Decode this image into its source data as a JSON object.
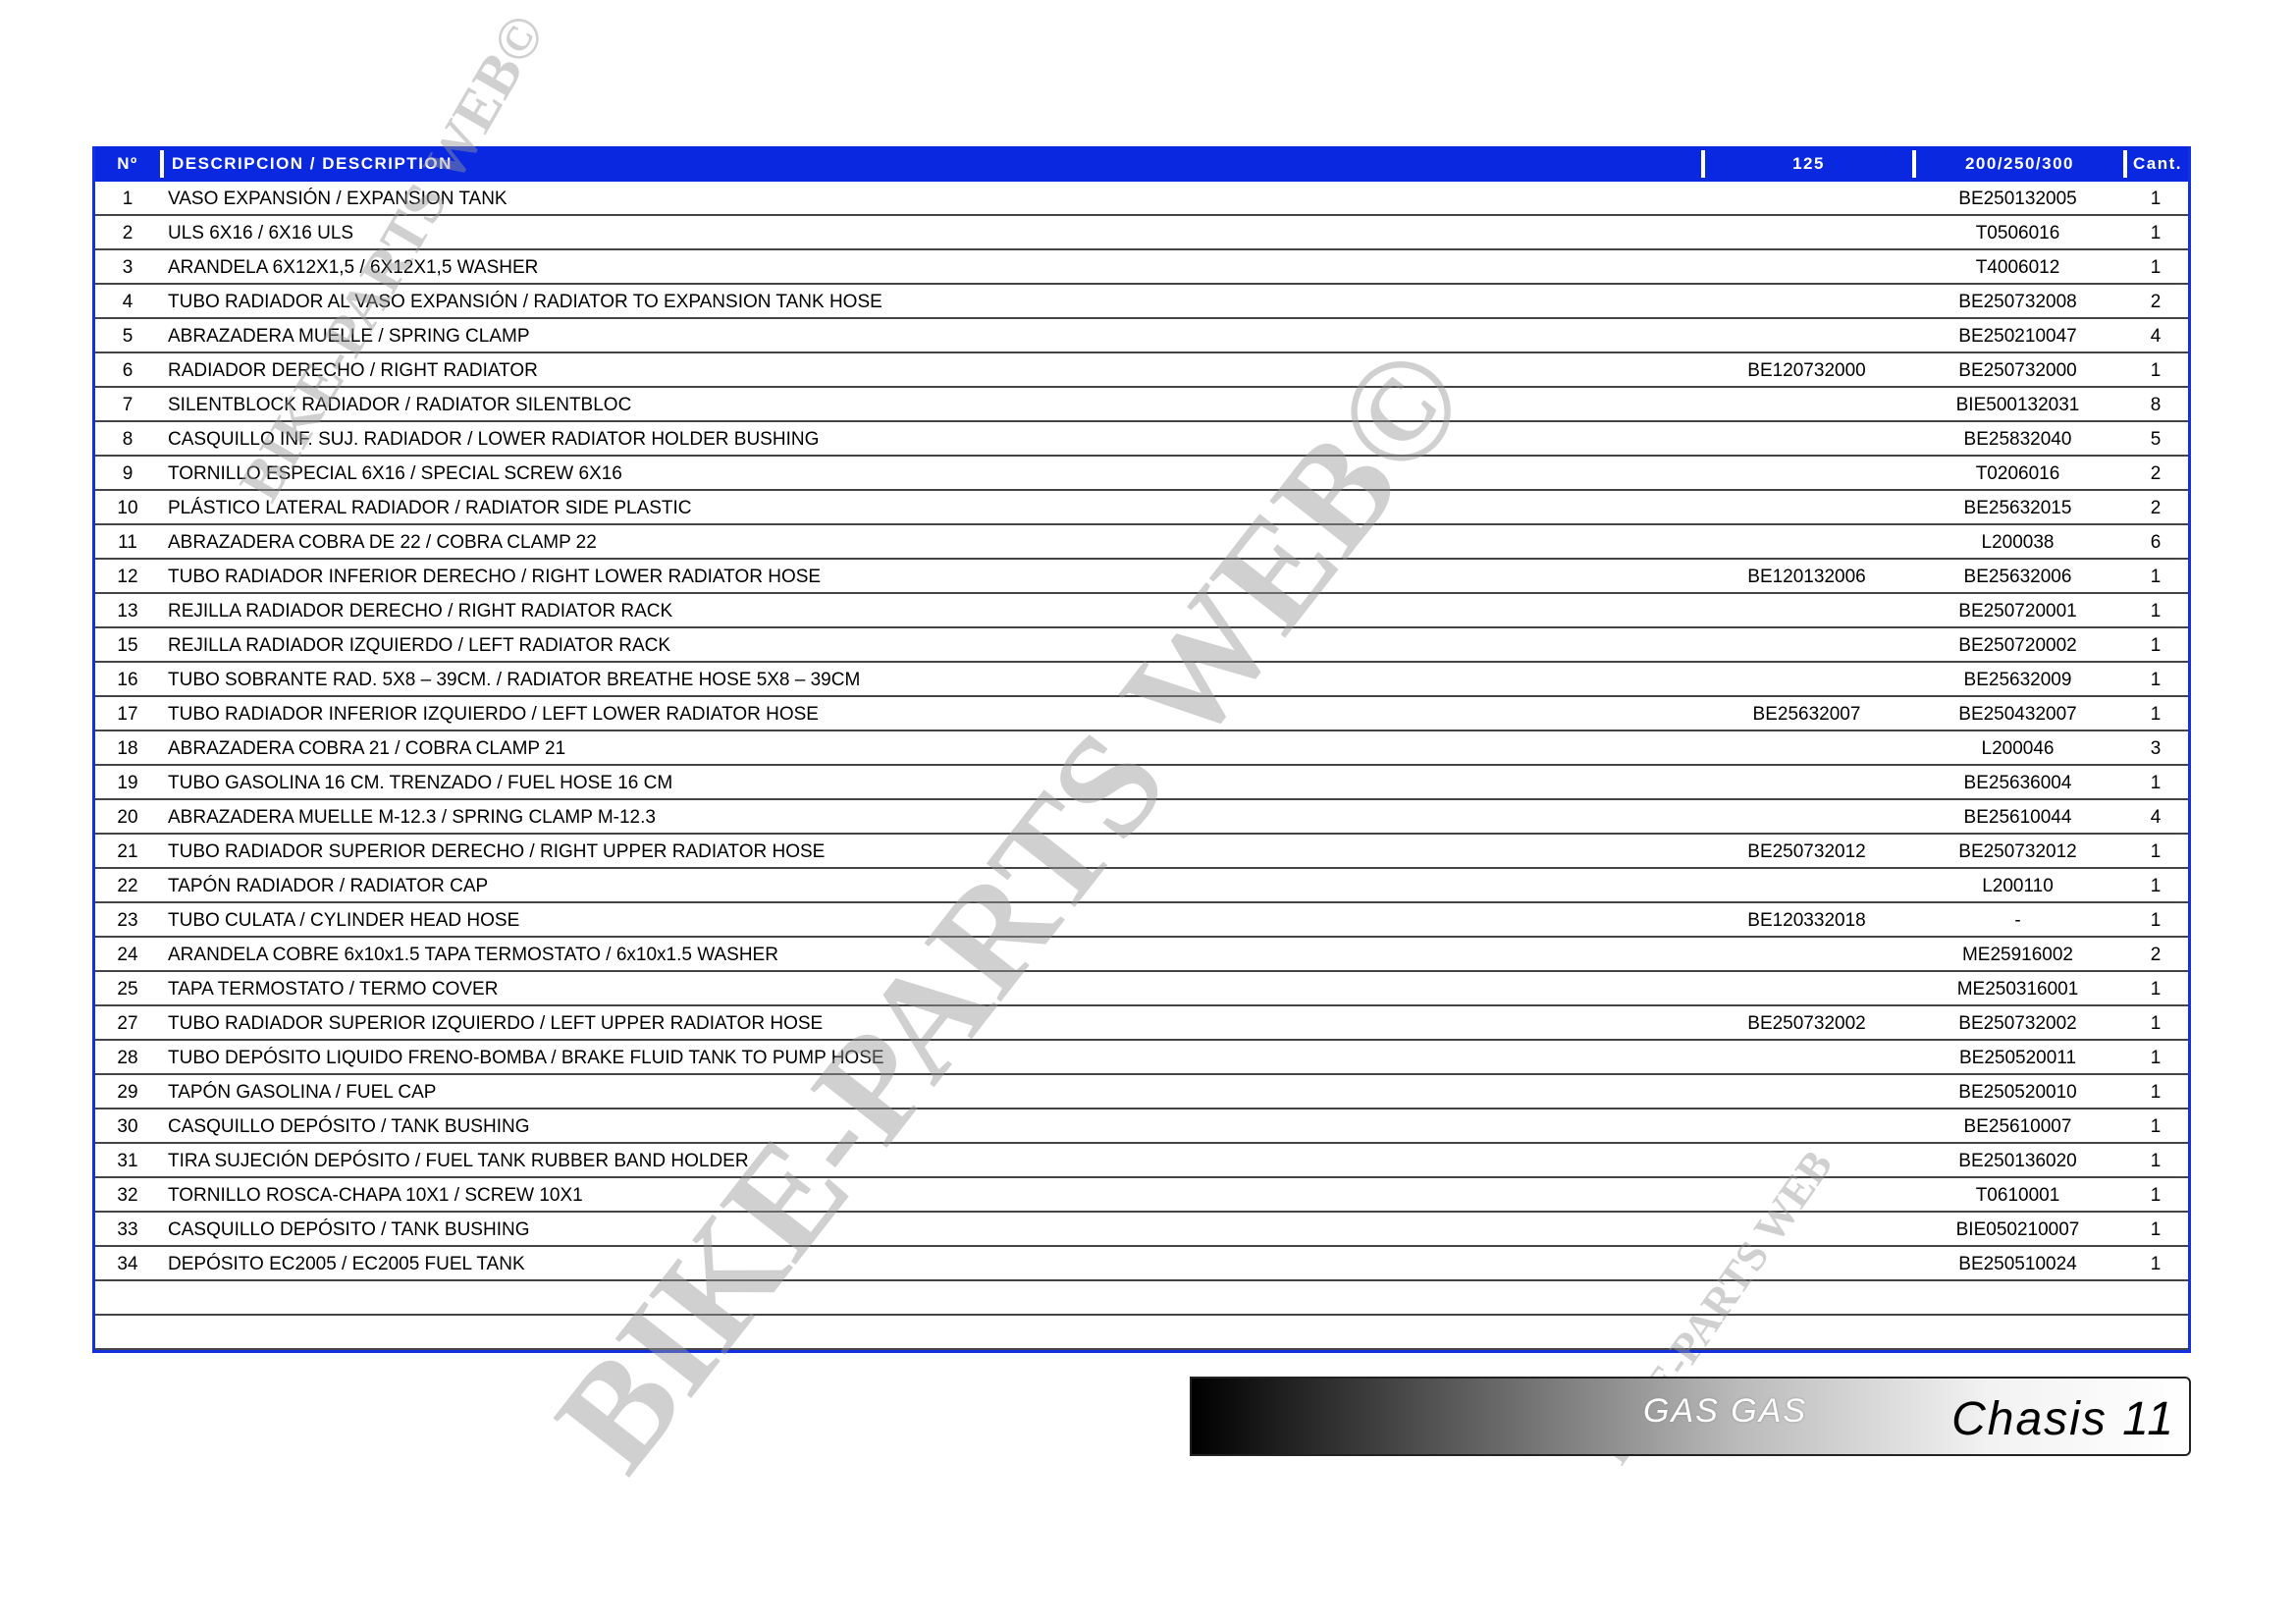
{
  "colors": {
    "header": "#0a28e0",
    "border": "#1530e0"
  },
  "table": {
    "headers": [
      "Nº",
      "DESCRIPCION / DESCRIPTION",
      "125",
      "200/250/300",
      "Cant."
    ],
    "rows": [
      [
        "1",
        "VASO EXPANSIÓN / EXPANSION TANK",
        "",
        "BE250132005",
        "1"
      ],
      [
        "2",
        "ULS 6X16 / 6X16 ULS",
        "",
        "T0506016",
        "1"
      ],
      [
        "3",
        "ARANDELA 6X12X1,5 / 6X12X1,5 WASHER",
        "",
        "T4006012",
        "1"
      ],
      [
        "4",
        "TUBO RADIADOR AL VASO EXPANSIÓN / RADIATOR TO EXPANSION TANK HOSE",
        "",
        "BE250732008",
        "2"
      ],
      [
        "5",
        "ABRAZADERA MUELLE / SPRING CLAMP",
        "",
        "BE250210047",
        "4"
      ],
      [
        "6",
        "RADIADOR DERECHO / RIGHT RADIATOR",
        "BE120732000",
        "BE250732000",
        "1"
      ],
      [
        "7",
        "SILENTBLOCK RADIADOR / RADIATOR SILENTBLOC",
        "",
        "BIE500132031",
        "8"
      ],
      [
        "8",
        "CASQUILLO INF. SUJ. RADIADOR / LOWER RADIATOR HOLDER BUSHING",
        "",
        "BE25832040",
        "5"
      ],
      [
        "9",
        "TORNILLO ESPECIAL 6X16 / SPECIAL SCREW 6X16",
        "",
        "T0206016",
        "2"
      ],
      [
        "10",
        "PLÁSTICO LATERAL RADIADOR / RADIATOR SIDE PLASTIC",
        "",
        "BE25632015",
        "2"
      ],
      [
        "11",
        "ABRAZADERA COBRA DE 22 / COBRA CLAMP 22",
        "",
        "L200038",
        "6"
      ],
      [
        "12",
        "TUBO RADIADOR INFERIOR DERECHO / RIGHT LOWER RADIATOR HOSE",
        "BE120132006",
        "BE25632006",
        "1"
      ],
      [
        "13",
        "REJILLA RADIADOR DERECHO / RIGHT RADIATOR RACK",
        "",
        "BE250720001",
        "1"
      ],
      [
        "15",
        "REJILLA RADIADOR IZQUIERDO / LEFT RADIATOR RACK",
        "",
        "BE250720002",
        "1"
      ],
      [
        "16",
        "TUBO SOBRANTE RAD. 5X8 – 39CM. / RADIATOR BREATHE HOSE 5X8 – 39CM",
        "",
        "BE25632009",
        "1"
      ],
      [
        "17",
        "TUBO RADIADOR INFERIOR IZQUIERDO / LEFT LOWER RADIATOR HOSE",
        "BE25632007",
        "BE250432007",
        "1"
      ],
      [
        "18",
        "ABRAZADERA COBRA 21 / COBRA CLAMP 21",
        "",
        "L200046",
        "3"
      ],
      [
        "19",
        "TUBO GASOLINA 16 CM. TRENZADO / FUEL HOSE 16 CM",
        "",
        "BE25636004",
        "1"
      ],
      [
        "20",
        "ABRAZADERA MUELLE M-12.3 / SPRING CLAMP M-12.3",
        "",
        "BE25610044",
        "4"
      ],
      [
        "21",
        "TUBO RADIADOR SUPERIOR DERECHO / RIGHT UPPER RADIATOR HOSE",
        "BE250732012",
        "BE250732012",
        "1"
      ],
      [
        "22",
        "TAPÓN RADIADOR / RADIATOR CAP",
        "",
        "L200110",
        "1"
      ],
      [
        "23",
        "TUBO CULATA / CYLINDER HEAD HOSE",
        "BE120332018",
        "-",
        "1"
      ],
      [
        "24",
        "ARANDELA COBRE 6x10x1.5 TAPA TERMOSTATO / 6x10x1.5 WASHER",
        "",
        "ME25916002",
        "2"
      ],
      [
        "25",
        "TAPA TERMOSTATO / TERMO COVER",
        "",
        "ME250316001",
        "1"
      ],
      [
        "27",
        "TUBO RADIADOR SUPERIOR IZQUIERDO / LEFT UPPER RADIATOR HOSE",
        "BE250732002",
        "BE250732002",
        "1"
      ],
      [
        "28",
        "TUBO DEPÓSITO LIQUIDO FRENO-BOMBA / BRAKE FLUID TANK TO PUMP HOSE",
        "",
        "BE250520011",
        "1"
      ],
      [
        "29",
        "TAPÓN GASOLINA / FUEL CAP",
        "",
        "BE250520010",
        "1"
      ],
      [
        "30",
        "CASQUILLO DEPÓSITO / TANK BUSHING",
        "",
        "BE25610007",
        "1"
      ],
      [
        "31",
        "TIRA SUJECIÓN DEPÓSITO / FUEL TANK RUBBER BAND HOLDER",
        "",
        "BE250136020",
        "1"
      ],
      [
        "32",
        "TORNILLO ROSCA-CHAPA 10X1 / SCREW 10X1",
        "",
        "T0610001",
        "1"
      ],
      [
        "33",
        "CASQUILLO DEPÓSITO / TANK BUSHING",
        "",
        "BIE050210007",
        "1"
      ],
      [
        "34",
        "DEPÓSITO EC2005 / EC2005 FUEL TANK",
        "",
        "BE250510024",
        "1"
      ],
      [
        "",
        "",
        "",
        "",
        ""
      ],
      [
        "",
        "",
        "",
        "",
        ""
      ]
    ]
  },
  "watermark": {
    "text": "BIKE-PARTS WEB©",
    "text_small": "BIKE-PARTS WEB"
  },
  "footer": {
    "brand": "GAS GAS",
    "section": "Chasis 11"
  }
}
